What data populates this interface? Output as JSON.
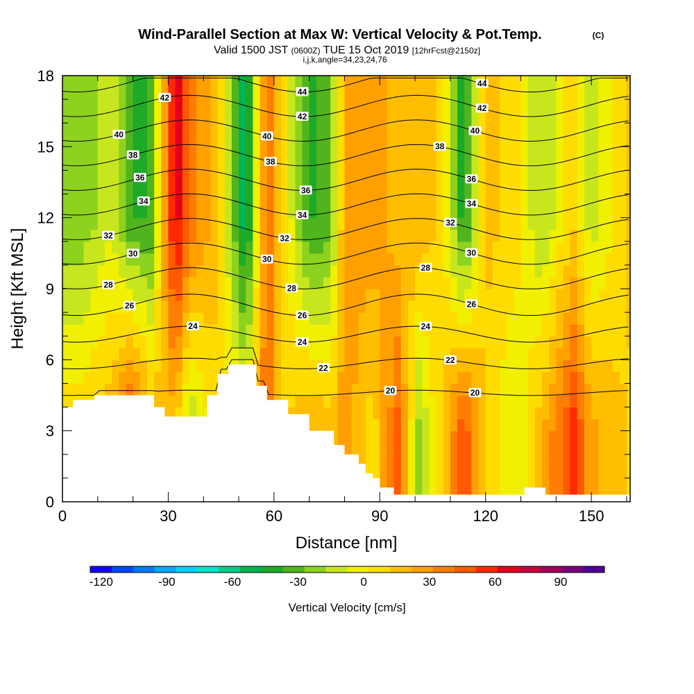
{
  "chart_data": {
    "type": "heatmap",
    "title": "Wind-Parallel Section at Max W: Vertical Velocity & Pot.Temp.",
    "title_mark": "(C)",
    "subtitle_prefix": "Valid 1500 JST",
    "subtitle_utc": "(0600Z)",
    "subtitle_date": "TUE 15 Oct 2019",
    "subtitle_fcst": "[12hrFcst@2150z]",
    "subtitle2": "i,j,k,angle=34,23,24,76",
    "xlabel": "Distance [nm]",
    "ylabel": "Height [Kft MSL]",
    "xlim": [
      0,
      161
    ],
    "ylim": [
      0,
      18
    ],
    "x_ticks": [
      0,
      30,
      60,
      90,
      120,
      150
    ],
    "y_ticks": [
      0,
      3,
      6,
      9,
      12,
      15,
      18
    ],
    "colorbar": {
      "label": "Vertical Velocity [cm/s]",
      "ticks": [
        -120,
        -90,
        -60,
        -30,
        0,
        30,
        60,
        90
      ],
      "range": [
        -125,
        110
      ],
      "colors": [
        "#1400ff",
        "#0046ff",
        "#0078ff",
        "#00aaff",
        "#00d2ff",
        "#00e6c8",
        "#00cc88",
        "#00b450",
        "#1eaa28",
        "#50b41e",
        "#8cd21e",
        "#c8e61e",
        "#f0f000",
        "#ffdc00",
        "#ffbe00",
        "#ffa000",
        "#ff7d00",
        "#ff5a00",
        "#ff2800",
        "#e6001e",
        "#c8003c",
        "#a0005a",
        "#780078",
        "#500096"
      ]
    },
    "velocity_columns": [
      {
        "x": 5,
        "w_top": -25,
        "w_low": 10
      },
      {
        "x": 14,
        "w_top": -10,
        "w_low": 20
      },
      {
        "x": 20,
        "w_top": -40,
        "w_low": 55
      },
      {
        "x": 25,
        "w_top": -35,
        "w_low": 20
      },
      {
        "x": 32,
        "w_top": 70,
        "w_low": 15
      },
      {
        "x": 36,
        "w_top": 40,
        "w_low": -20
      },
      {
        "x": 44,
        "w_top": 15,
        "w_low": 10
      },
      {
        "x": 52,
        "w_top": -60,
        "w_low": 5
      },
      {
        "x": 58,
        "w_top": 45,
        "w_low": 40
      },
      {
        "x": 63,
        "w_top": 5,
        "w_low": 10
      },
      {
        "x": 70,
        "w_top": -40,
        "w_low": 25
      },
      {
        "x": 76,
        "w_top": -30,
        "w_low": 15
      },
      {
        "x": 80,
        "w_top": 25,
        "w_low": 30
      },
      {
        "x": 88,
        "w_top": 30,
        "w_low": 5
      },
      {
        "x": 95,
        "w_top": 15,
        "w_low": 45
      },
      {
        "x": 101,
        "w_top": 20,
        "w_low": -20
      },
      {
        "x": 107,
        "w_top": 10,
        "w_low": 10
      },
      {
        "x": 114,
        "w_top": -45,
        "w_low": 50
      },
      {
        "x": 120,
        "w_top": 15,
        "w_low": 10
      },
      {
        "x": 128,
        "w_top": 10,
        "w_low": -10
      },
      {
        "x": 136,
        "w_top": -20,
        "w_low": 20
      },
      {
        "x": 145,
        "w_top": 10,
        "w_low": 55
      },
      {
        "x": 150,
        "w_top": -15,
        "w_low": 25
      },
      {
        "x": 161,
        "w_top": 15,
        "w_low": 10
      }
    ],
    "terrain": [
      [
        0,
        4
      ],
      [
        3,
        4
      ],
      [
        3,
        4.3
      ],
      [
        9,
        4.3
      ],
      [
        9,
        4.5
      ],
      [
        26,
        4.5
      ],
      [
        26,
        4
      ],
      [
        29,
        4
      ],
      [
        29,
        3.6
      ],
      [
        41,
        3.6
      ],
      [
        41,
        4.5
      ],
      [
        44,
        4.5
      ],
      [
        44,
        5.4
      ],
      [
        47,
        5.4
      ],
      [
        47,
        5.8
      ],
      [
        55,
        5.8
      ],
      [
        55,
        4.9
      ],
      [
        58,
        4.9
      ],
      [
        58,
        4.3
      ],
      [
        64,
        4.3
      ],
      [
        64,
        3.7
      ],
      [
        70,
        3.7
      ],
      [
        70,
        3
      ],
      [
        77,
        3
      ],
      [
        77,
        2.4
      ],
      [
        80,
        2.4
      ],
      [
        80,
        2
      ],
      [
        84,
        2
      ],
      [
        84,
        1.6
      ],
      [
        86,
        1.6
      ],
      [
        86,
        1.2
      ],
      [
        88,
        1.2
      ],
      [
        88,
        1
      ],
      [
        90,
        1
      ],
      [
        90,
        0.6
      ],
      [
        94,
        0.6
      ],
      [
        94,
        0.3
      ],
      [
        131,
        0.3
      ],
      [
        131,
        0.6
      ],
      [
        137,
        0.6
      ],
      [
        137,
        0.3
      ],
      [
        161,
        0.3
      ]
    ],
    "isentropes": [
      {
        "level": 20,
        "labels": [
          {
            "x": 117,
            "text": "20"
          },
          {
            "x": 93,
            "text": "20"
          }
        ]
      },
      {
        "level": 22,
        "labels": [
          {
            "x": 110,
            "text": "22"
          },
          {
            "x": 74,
            "text": "22"
          }
        ]
      },
      {
        "level": 24,
        "labels": [
          {
            "x": 37,
            "text": "24"
          },
          {
            "x": 68,
            "text": "24"
          },
          {
            "x": 103,
            "text": "24"
          }
        ]
      },
      {
        "level": 26,
        "labels": [
          {
            "x": 19,
            "text": "26"
          },
          {
            "x": 68,
            "text": "26"
          },
          {
            "x": 116,
            "text": "26"
          }
        ]
      },
      {
        "level": 28,
        "labels": [
          {
            "x": 13,
            "text": "28"
          },
          {
            "x": 65,
            "text": "28"
          },
          {
            "x": 103,
            "text": "28"
          }
        ]
      },
      {
        "level": 30,
        "labels": [
          {
            "x": 20,
            "text": "30"
          },
          {
            "x": 58,
            "text": "30"
          },
          {
            "x": 116,
            "text": "30"
          }
        ]
      },
      {
        "level": 32,
        "labels": [
          {
            "x": 13,
            "text": "32"
          },
          {
            "x": 63,
            "text": "32"
          },
          {
            "x": 110,
            "text": "32"
          }
        ]
      },
      {
        "level": 34,
        "labels": [
          {
            "x": 23,
            "text": "34"
          },
          {
            "x": 68,
            "text": "34"
          },
          {
            "x": 116,
            "text": "34"
          }
        ]
      },
      {
        "level": 36,
        "labels": [
          {
            "x": 22,
            "text": "36"
          },
          {
            "x": 69,
            "text": "36"
          },
          {
            "x": 116,
            "text": "36"
          }
        ]
      },
      {
        "level": 38,
        "labels": [
          {
            "x": 20,
            "text": "38"
          },
          {
            "x": 59,
            "text": "38"
          },
          {
            "x": 107,
            "text": "38"
          }
        ]
      },
      {
        "level": 40,
        "labels": [
          {
            "x": 16,
            "text": "40"
          },
          {
            "x": 58,
            "text": "40"
          },
          {
            "x": 117,
            "text": "40"
          }
        ]
      },
      {
        "level": 42,
        "labels": [
          {
            "x": 29,
            "text": "42"
          },
          {
            "x": 68,
            "text": "42"
          },
          {
            "x": 119,
            "text": "42"
          }
        ]
      },
      {
        "level": 44,
        "labels": [
          {
            "x": 68,
            "text": "44"
          },
          {
            "x": 119,
            "text": "44"
          }
        ]
      }
    ]
  }
}
